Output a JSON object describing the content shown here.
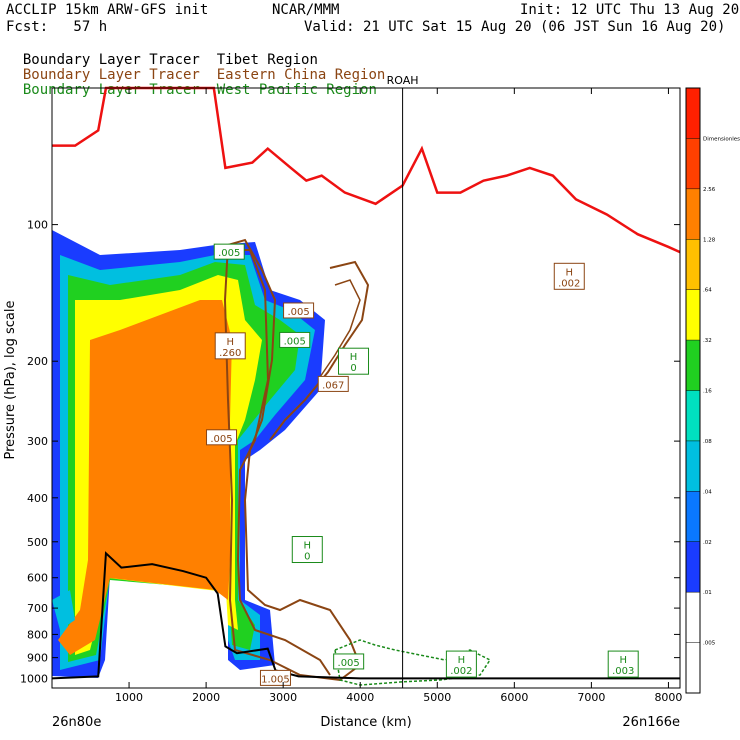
{
  "header": {
    "model": "ACCLIP 15km ARW-GFS init",
    "org": "NCAR/MMM",
    "init": "Init: 12 UTC Thu 13 Aug 20",
    "fcst": "Fcst:   57 h",
    "valid": "Valid: 21 UTC Sat 15 Aug 20 (06 JST Sun 16 Aug 20)",
    "tracers": [
      {
        "prefix": "Boundary Layer Tracer",
        "region": "Tibet Region",
        "color": "#000000"
      },
      {
        "prefix": "Boundary Layer Tracer",
        "region": "Eastern China Region",
        "color": "#8b4513"
      },
      {
        "prefix": "Boundary Layer Tracer",
        "region": "West Pacific Region",
        "color": "#1a8a1a"
      }
    ]
  },
  "chart_data": {
    "type": "cross-section",
    "xlabel": "Distance (km)",
    "ylabel": "Pressure (hPa), log scale",
    "xlim": [
      0,
      8150
    ],
    "ylim": [
      1050,
      50
    ],
    "x_ticks": [
      "1000",
      "2000",
      "3000",
      "4000",
      "5000",
      "6000",
      "7000",
      "8000"
    ],
    "y_ticks": [
      "100",
      "200",
      "300",
      "400",
      "500",
      "600",
      "700",
      "800",
      "900",
      "1000"
    ],
    "x_left_label": "26n80e",
    "x_right_label": "26n166e",
    "marker": {
      "label": "ROAH",
      "x": 4550
    },
    "colorbar": {
      "title": "Dimensionless",
      "colors": [
        "#ffffff",
        "#ffffff",
        "#1a3cff",
        "#0a78ff",
        "#00bfe0",
        "#00e0c0",
        "#20d020",
        "#ffff00",
        "#ffc000",
        "#ff8000",
        "#ff4000",
        "#ff2000"
      ],
      "labels": [
        ".005",
        ".01",
        ".02",
        ".04",
        ".08",
        ".16",
        ".32",
        ".64",
        "1.28",
        "2.56",
        "Dimensionless"
      ]
    },
    "tropopause_red": [
      [
        0,
        67
      ],
      [
        300,
        67
      ],
      [
        600,
        62
      ],
      [
        700,
        50
      ],
      [
        1500,
        50
      ],
      [
        2100,
        50
      ],
      [
        2250,
        75
      ],
      [
        2600,
        73
      ],
      [
        2800,
        68
      ],
      [
        3100,
        75
      ],
      [
        3300,
        80
      ],
      [
        3500,
        78
      ],
      [
        3800,
        85
      ],
      [
        4200,
        90
      ],
      [
        4550,
        82
      ],
      [
        4800,
        68
      ],
      [
        5000,
        85
      ],
      [
        5300,
        85
      ],
      [
        5600,
        80
      ],
      [
        5900,
        78
      ],
      [
        6200,
        75
      ],
      [
        6500,
        78
      ],
      [
        6800,
        88
      ],
      [
        7200,
        95
      ],
      [
        7600,
        105
      ],
      [
        8000,
        112
      ],
      [
        8150,
        115
      ]
    ],
    "terrain_black": [
      [
        0,
        1000
      ],
      [
        600,
        990
      ],
      [
        700,
        530
      ],
      [
        900,
        570
      ],
      [
        1300,
        560
      ],
      [
        1700,
        580
      ],
      [
        2000,
        600
      ],
      [
        2150,
        650
      ],
      [
        2250,
        850
      ],
      [
        2400,
        880
      ],
      [
        2800,
        860
      ],
      [
        2900,
        960
      ],
      [
        3200,
        990
      ],
      [
        4000,
        1000
      ],
      [
        8150,
        1000
      ]
    ],
    "maxima": [
      {
        "label": "H",
        "value": ".260",
        "x": 2300,
        "p": 185,
        "color": "#8b4513"
      },
      {
        "label": "H",
        "value": ".002",
        "x": 6700,
        "p": 130,
        "color": "#8b4513"
      },
      {
        "label": "H",
        "value": "0",
        "x": 3900,
        "p": 200,
        "color": "#1a8a1a"
      },
      {
        "label": "H",
        "value": "0",
        "x": 3300,
        "p": 520,
        "color": "#1a8a1a"
      },
      {
        "label": "H",
        "value": ".003",
        "x": 7400,
        "p": 930,
        "color": "#1a8a1a"
      },
      {
        "label": "H",
        "value": ".002",
        "x": 5300,
        "p": 930,
        "color": "#1a8a1a"
      }
    ],
    "contour_labels": [
      {
        "text": ".005",
        "x": 2300,
        "p": 115,
        "color": "#1a8a1a"
      },
      {
        "text": ".005",
        "x": 3200,
        "p": 155,
        "color": "#8b4513"
      },
      {
        "text": ".005",
        "x": 3150,
        "p": 180,
        "color": "#1a8a1a"
      },
      {
        "text": ".067",
        "x": 3650,
        "p": 225,
        "color": "#8b4513"
      },
      {
        "text": ".005",
        "x": 2200,
        "p": 295,
        "color": "#8b4513"
      },
      {
        "text": ".005",
        "x": 3850,
        "p": 920,
        "color": "#1a8a1a"
      },
      {
        "text": "1.005",
        "x": 2900,
        "p": 1000,
        "color": "#8b4513"
      }
    ]
  }
}
